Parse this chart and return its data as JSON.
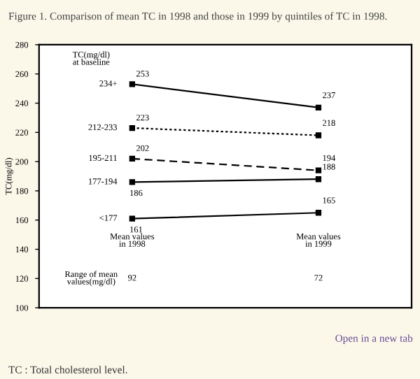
{
  "chart_data": {
    "type": "line",
    "title": "Figure 1. Comparison of mean TC in 1998 and those in 1999 by quintiles of TC in 1998.",
    "ylabel": "TC(mg/dl)",
    "categories": [
      "Mean values\nin 1998",
      "Mean values\nin 1999"
    ],
    "series": [
      {
        "name": "234+",
        "color": "#000000",
        "values": [
          253,
          237
        ],
        "line_style": "solid"
      },
      {
        "name": "212-233",
        "color": "#000000",
        "values": [
          223,
          218
        ],
        "line_style": "dotted"
      },
      {
        "name": "195-211",
        "color": "#000000",
        "values": [
          202,
          194
        ],
        "line_style": "dashed"
      },
      {
        "name": "177-194",
        "color": "#000000",
        "values": [
          186,
          188
        ],
        "line_style": "solid"
      },
      {
        "name": "<177",
        "color": "#000000",
        "values": [
          161,
          165
        ],
        "line_style": "solid"
      }
    ],
    "ylim": [
      100,
      280
    ],
    "yticks": [
      100,
      120,
      140,
      160,
      180,
      200,
      220,
      240,
      260,
      280
    ],
    "tick_labels": "y",
    "data_labels": true,
    "marker": "square",
    "grid": false,
    "legend": false,
    "legend_title": "TC(mg/dl)\nat baseline",
    "annotations": [
      "Range of mean\nvalues(mg/dl)",
      "92",
      "72",
      "Open in a new tab",
      "TC : Total cholesterol level."
    ]
  }
}
